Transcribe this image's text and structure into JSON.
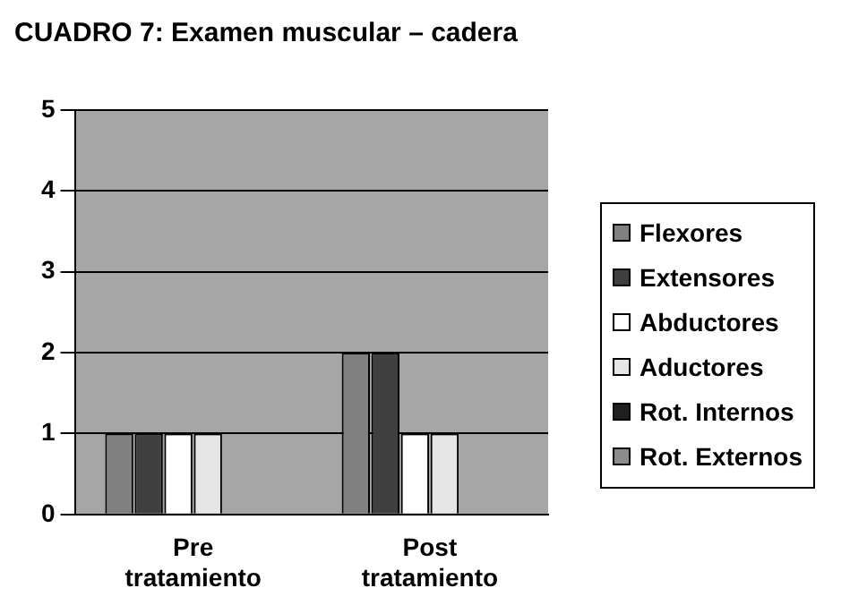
{
  "chart_data": {
    "type": "bar",
    "title": "CUADRO 7: Examen muscular – cadera",
    "categories": [
      "Pre tratamiento",
      "Post tratamiento"
    ],
    "series": [
      {
        "name": "Flexores",
        "color": "#808080",
        "values": [
          1,
          2
        ]
      },
      {
        "name": "Extensores",
        "color": "#404040",
        "values": [
          1,
          2
        ]
      },
      {
        "name": "Abductores",
        "color": "#ffffff",
        "values": [
          1,
          1
        ]
      },
      {
        "name": "Aductores",
        "color": "#e6e6e6",
        "values": [
          1,
          1
        ]
      },
      {
        "name": "Rot. Internos",
        "color": "#202020",
        "values": [
          0,
          0
        ]
      },
      {
        "name": "Rot. Externos",
        "color": "#8c8c8c",
        "values": [
          0,
          0
        ]
      }
    ],
    "ylim": [
      0,
      5
    ],
    "yticks": [
      0,
      1,
      2,
      3,
      4,
      5
    ],
    "grid": "y",
    "legend": "right"
  }
}
